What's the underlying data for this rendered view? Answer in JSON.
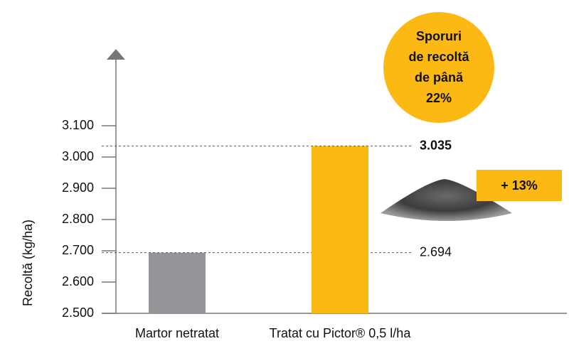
{
  "chart_data": {
    "type": "bar",
    "ylabel": "Recoltă (kg/ha)",
    "categories": [
      "Martor netratat",
      "Tratat cu Pictor® 0,5 l/ha"
    ],
    "values": [
      2694,
      3035
    ],
    "value_labels": [
      "2.694",
      "3.035"
    ],
    "colors": [
      "#939598",
      "#fdb913"
    ],
    "ylim": [
      2500,
      3300
    ],
    "yticks": [
      {
        "value": 2500,
        "label": "2.500"
      },
      {
        "value": 2600,
        "label": "2.600"
      },
      {
        "value": 2700,
        "label": "2.700"
      },
      {
        "value": 2800,
        "label": "2.800"
      },
      {
        "value": 2900,
        "label": "2.900"
      },
      {
        "value": 3000,
        "label": "3.000"
      },
      {
        "value": 3100,
        "label": "3.100"
      }
    ],
    "grid": false,
    "badge": [
      "Sporuri",
      "de recoltă",
      "de până",
      "22%"
    ],
    "highlight": "+ 13%"
  }
}
